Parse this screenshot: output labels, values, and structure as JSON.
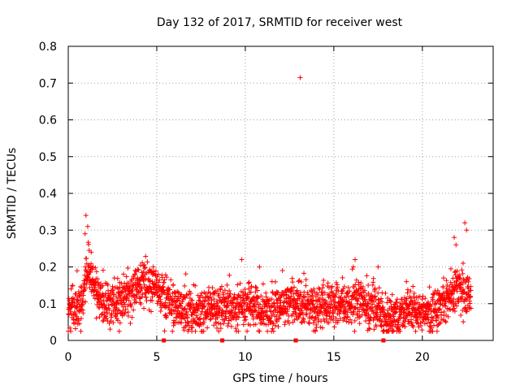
{
  "chart_data": {
    "type": "scatter",
    "title": "Day 132 of 2017, SRMTID for receiver west",
    "xlabel": "GPS time / hours",
    "ylabel": "SRMTID / TECUs",
    "xlim": [
      0,
      24
    ],
    "ylim": [
      0,
      0.8
    ],
    "xticks": [
      0,
      5,
      10,
      15,
      20
    ],
    "yticks": [
      0,
      0.1,
      0.2,
      0.3,
      0.4,
      0.5,
      0.6,
      0.7,
      0.8
    ],
    "x_tick_labels": [
      "0",
      "5",
      "10",
      "15",
      "20"
    ],
    "y_tick_labels": [
      "0",
      "0.1",
      "0.2",
      "0.3",
      "0.4",
      "0.5",
      "0.6",
      "0.7",
      "0.8"
    ],
    "grid": true,
    "marker": "+",
    "color": "#ff0000",
    "series": [
      {
        "name": "SRMTID",
        "x_start": 0.0,
        "x_end": 22.75,
        "x_step": 0.01,
        "baseline_profile": [
          [
            0.0,
            0.09
          ],
          [
            0.8,
            0.1
          ],
          [
            1.0,
            0.2
          ],
          [
            1.4,
            0.16
          ],
          [
            2.0,
            0.1
          ],
          [
            3.0,
            0.1
          ],
          [
            3.8,
            0.14
          ],
          [
            4.5,
            0.15
          ],
          [
            5.2,
            0.13
          ],
          [
            6.0,
            0.09
          ],
          [
            7.5,
            0.08
          ],
          [
            9.0,
            0.09
          ],
          [
            10.0,
            0.1
          ],
          [
            11.0,
            0.08
          ],
          [
            12.5,
            0.1
          ],
          [
            14.0,
            0.09
          ],
          [
            15.5,
            0.1
          ],
          [
            16.5,
            0.11
          ],
          [
            17.5,
            0.09
          ],
          [
            18.0,
            0.06
          ],
          [
            19.0,
            0.08
          ],
          [
            20.0,
            0.08
          ],
          [
            21.0,
            0.09
          ],
          [
            22.0,
            0.14
          ],
          [
            22.75,
            0.12
          ]
        ],
        "spread": 0.03,
        "notable_points": [
          {
            "x": 13.1,
            "y": 0.715
          },
          {
            "x": 1.0,
            "y": 0.34
          },
          {
            "x": 1.1,
            "y": 0.31
          },
          {
            "x": 0.95,
            "y": 0.29
          },
          {
            "x": 1.3,
            "y": 0.24
          },
          {
            "x": 9.8,
            "y": 0.22
          },
          {
            "x": 10.8,
            "y": 0.2
          },
          {
            "x": 16.2,
            "y": 0.22
          },
          {
            "x": 16.1,
            "y": 0.2
          },
          {
            "x": 17.5,
            "y": 0.2
          },
          {
            "x": 22.4,
            "y": 0.32
          },
          {
            "x": 22.5,
            "y": 0.3
          },
          {
            "x": 21.8,
            "y": 0.28
          },
          {
            "x": 21.9,
            "y": 0.26
          },
          {
            "x": 22.3,
            "y": 0.21
          },
          {
            "x": 4.8,
            "y": 0.2
          },
          {
            "x": 3.8,
            "y": 0.19
          },
          {
            "x": 12.1,
            "y": 0.19
          },
          {
            "x": 19.1,
            "y": 0.16
          }
        ]
      }
    ],
    "axis_markers": [
      {
        "x": 5.4,
        "y": 0
      },
      {
        "x": 8.7,
        "y": 0
      },
      {
        "x": 12.85,
        "y": 0
      },
      {
        "x": 17.8,
        "y": 0
      }
    ]
  }
}
